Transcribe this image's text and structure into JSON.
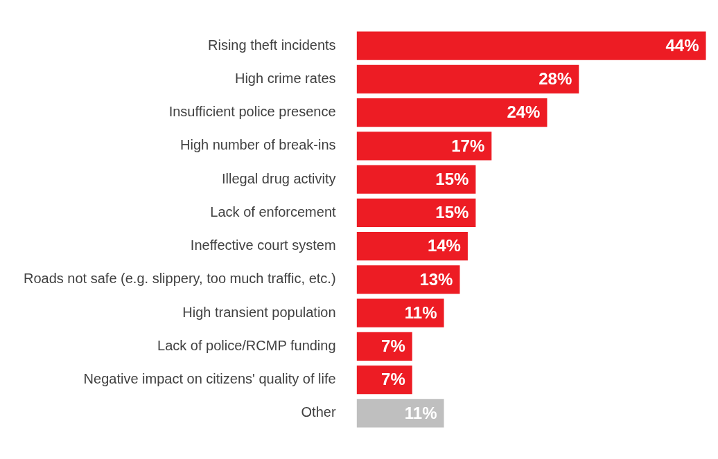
{
  "chart_data": {
    "type": "bar",
    "orientation": "horizontal",
    "categories": [
      "Rising theft incidents",
      "High crime rates",
      "Insufficient police presence",
      "High number of break-ins",
      "Illegal drug activity",
      "Lack of enforcement",
      "Ineffective court system",
      "Roads not safe (e.g. slippery, too much traffic, etc.)",
      "High transient population",
      "Lack of police/RCMP funding",
      "Negative impact on citizens' quality of life",
      "Other"
    ],
    "values": [
      44,
      28,
      24,
      17,
      15,
      15,
      14,
      13,
      11,
      7,
      7,
      11
    ],
    "colors": [
      "#ed1c24",
      "#ed1c24",
      "#ed1c24",
      "#ed1c24",
      "#ed1c24",
      "#ed1c24",
      "#ed1c24",
      "#ed1c24",
      "#ed1c24",
      "#ed1c24",
      "#ed1c24",
      "#bfbfbf"
    ],
    "value_labels": [
      "44%",
      "28%",
      "24%",
      "17%",
      "15%",
      "15%",
      "14%",
      "13%",
      "11%",
      "7%",
      "7%",
      "11%"
    ],
    "legend": false
  }
}
